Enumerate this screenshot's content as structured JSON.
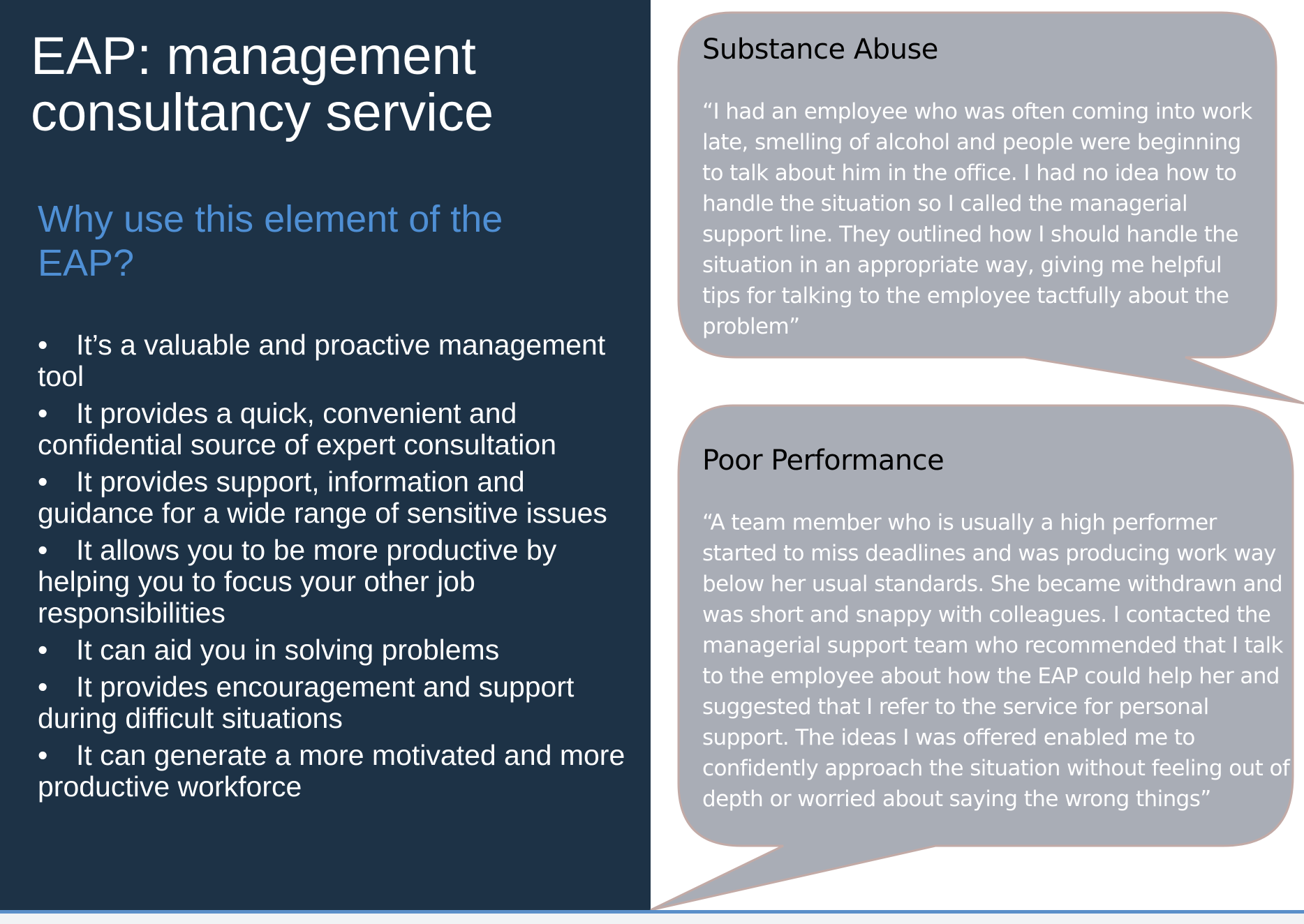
{
  "title": "EAP: management consultancy service",
  "subtitle": "Why use this element of the EAP?",
  "bullet_symbol": "•",
  "bullets": [
    "It’s a valuable and proactive management tool",
    "It provides a quick, convenient and confidential source of expert consultation",
    "It provides support, information and guidance for a wide range of sensitive issues",
    "It allows you to be more productive by helping you to focus your other job responsibilities",
    "It can aid you in solving problems",
    "It provides encouragement and support during difficult situations",
    "It can generate a more motivated and more productive workforce"
  ],
  "cases": [
    {
      "heading": "Substance Abuse",
      "quote": "“I had an employee who was often coming into work late, smelling of alcohol and people were beginning to talk about him in the office. I had no idea how to handle the situation so I called the managerial support line. They outlined how I should handle the situation in an appropriate way, giving me helpful tips for talking to the employee tactfully about the problem”"
    },
    {
      "heading": "Poor Performance",
      "quote": "“A team member who is usually a high performer started to miss deadlines and was producing work way below her usual standards. She became withdrawn and was short and snappy with colleagues. I contacted the managerial support team who recommended that I talk to the employee about how the EAP could help her and suggested that I refer to the service for personal support. The ideas I was offered enabled me to confidently approach the situation without feeling out of depth or worried about saying the wrong things”"
    }
  ],
  "colors": {
    "panel": "#1d3246",
    "accent": "#4f8fd4",
    "bubble_fill": "#a9adb6",
    "bubble_stroke": "#c2aaa6"
  }
}
